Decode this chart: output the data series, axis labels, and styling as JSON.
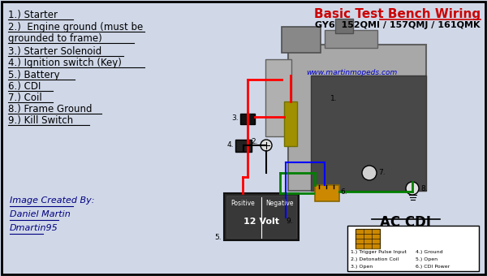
{
  "title1": "Basic Test Bench Wiring",
  "title2": "GY6  152QMI / 157QMJ / 161QMK",
  "watermark": "www.martinmopeds.com",
  "left_labels": [
    "1.) Starter",
    "2.)  Engine ground (must be",
    "grounded to frame)",
    "3.) Starter Solenoid",
    "4.) Ignition switch (Key)",
    "5.) Battery",
    "6.) CDI",
    "7.) Coil",
    "8.) Frame Ground",
    "9.) Kill Switch"
  ],
  "credit_lines": [
    "Image Created By:",
    "Daniel Martin",
    "Dmartin95"
  ],
  "ac_cdi_label": "AC CDI",
  "legend_items": [
    "1.) Trigger Pulse Input",
    "2.) Detonation Coil",
    "3.) Open",
    "4.) Ground",
    "5.) Open",
    "6.) CDI Power"
  ],
  "bg_color": "#d0d8e8",
  "border_color": "#000000",
  "title_color": "#cc0000",
  "title2_color": "#000000",
  "watermark_color": "#0000cc",
  "label_color": "#000000",
  "credit_color": "#000080"
}
